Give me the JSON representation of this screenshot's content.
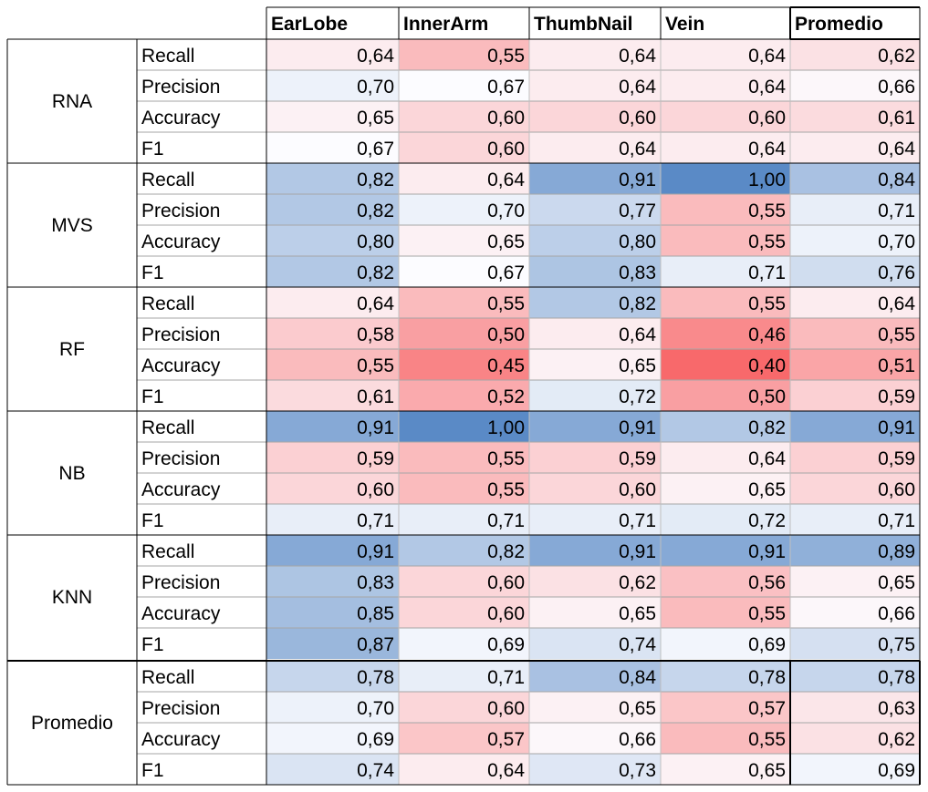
{
  "chart_data": {
    "type": "heatmap",
    "columns": [
      "EarLobe",
      "InnerArm",
      "ThumbNail",
      "Vein",
      "Promedio"
    ],
    "groups": [
      {
        "name": "RNA",
        "rows": [
          {
            "metric": "Recall",
            "values": [
              "0,64",
              "0,55",
              "0,64",
              "0,64",
              "0,62"
            ]
          },
          {
            "metric": "Precision",
            "values": [
              "0,70",
              "0,67",
              "0,64",
              "0,64",
              "0,66"
            ]
          },
          {
            "metric": "Accuracy",
            "values": [
              "0,65",
              "0,60",
              "0,60",
              "0,60",
              "0,61"
            ]
          },
          {
            "metric": "F1",
            "values": [
              "0,67",
              "0,60",
              "0,64",
              "0,64",
              "0,64"
            ]
          }
        ]
      },
      {
        "name": "MVS",
        "rows": [
          {
            "metric": "Recall",
            "values": [
              "0,82",
              "0,64",
              "0,91",
              "1,00",
              "0,84"
            ]
          },
          {
            "metric": "Precision",
            "values": [
              "0,82",
              "0,70",
              "0,77",
              "0,55",
              "0,71"
            ]
          },
          {
            "metric": "Accuracy",
            "values": [
              "0,80",
              "0,65",
              "0,80",
              "0,55",
              "0,70"
            ]
          },
          {
            "metric": "F1",
            "values": [
              "0,82",
              "0,67",
              "0,83",
              "0,71",
              "0,76"
            ]
          }
        ]
      },
      {
        "name": "RF",
        "rows": [
          {
            "metric": "Recall",
            "values": [
              "0,64",
              "0,55",
              "0,82",
              "0,55",
              "0,64"
            ]
          },
          {
            "metric": "Precision",
            "values": [
              "0,58",
              "0,50",
              "0,64",
              "0,46",
              "0,55"
            ]
          },
          {
            "metric": "Accuracy",
            "values": [
              "0,55",
              "0,45",
              "0,65",
              "0,40",
              "0,51"
            ]
          },
          {
            "metric": "F1",
            "values": [
              "0,61",
              "0,52",
              "0,72",
              "0,50",
              "0,59"
            ]
          }
        ]
      },
      {
        "name": "NB",
        "rows": [
          {
            "metric": "Recall",
            "values": [
              "0,91",
              "1,00",
              "0,91",
              "0,82",
              "0,91"
            ]
          },
          {
            "metric": "Precision",
            "values": [
              "0,59",
              "0,55",
              "0,59",
              "0,64",
              "0,59"
            ]
          },
          {
            "metric": "Accuracy",
            "values": [
              "0,60",
              "0,55",
              "0,60",
              "0,65",
              "0,60"
            ]
          },
          {
            "metric": "F1",
            "values": [
              "0,71",
              "0,71",
              "0,71",
              "0,72",
              "0,71"
            ]
          }
        ]
      },
      {
        "name": "KNN",
        "rows": [
          {
            "metric": "Recall",
            "values": [
              "0,91",
              "0,82",
              "0,91",
              "0,91",
              "0,89"
            ]
          },
          {
            "metric": "Precision",
            "values": [
              "0,83",
              "0,60",
              "0,62",
              "0,56",
              "0,65"
            ]
          },
          {
            "metric": "Accuracy",
            "values": [
              "0,85",
              "0,60",
              "0,65",
              "0,55",
              "0,66"
            ]
          },
          {
            "metric": "F1",
            "values": [
              "0,87",
              "0,69",
              "0,74",
              "0,69",
              "0,75"
            ]
          }
        ]
      },
      {
        "name": "Promedio",
        "rows": [
          {
            "metric": "Recall",
            "values": [
              "0,78",
              "0,71",
              "0,84",
              "0,78",
              "0,78"
            ]
          },
          {
            "metric": "Precision",
            "values": [
              "0,70",
              "0,60",
              "0,65",
              "0,57",
              "0,63"
            ]
          },
          {
            "metric": "Accuracy",
            "values": [
              "0,69",
              "0,57",
              "0,66",
              "0,55",
              "0,62"
            ]
          },
          {
            "metric": "F1",
            "values": [
              "0,74",
              "0,64",
              "0,73",
              "0,65",
              "0,69"
            ]
          }
        ]
      }
    ],
    "color_scale": {
      "min": 0.4,
      "mid": 0.67,
      "max": 1.0,
      "low_color": "#f8696b",
      "mid_color": "#fcfcff",
      "high_color": "#5a8ac6"
    },
    "decimal_separator": ","
  }
}
